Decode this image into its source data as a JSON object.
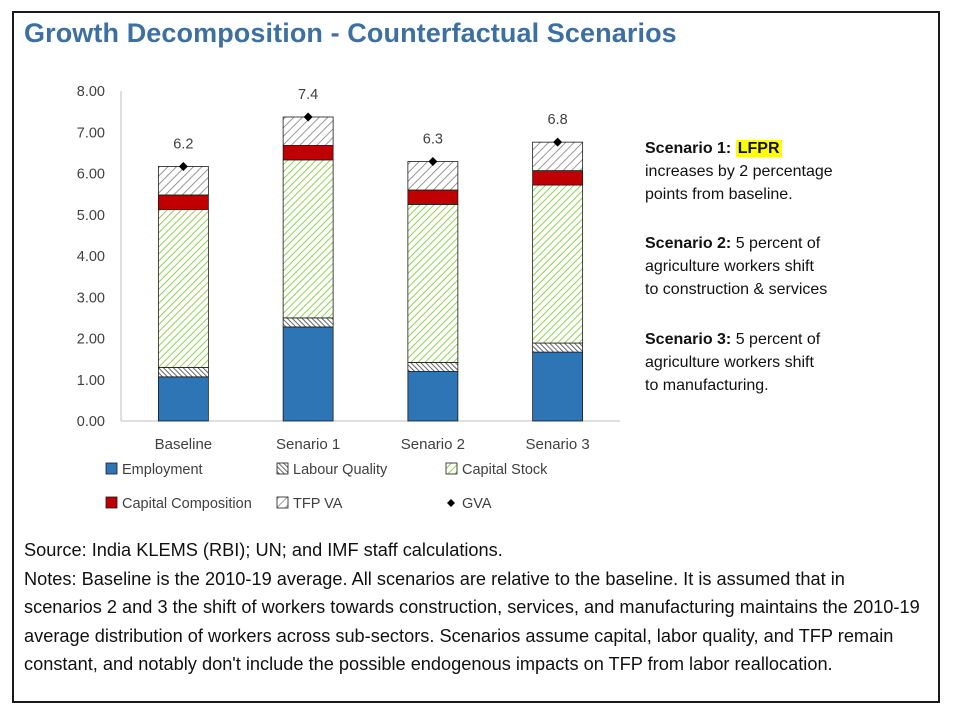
{
  "title": "Growth Decomposition - Counterfactual Scenarios",
  "chart_data": {
    "type": "bar",
    "stacked": true,
    "categories": [
      "Baseline",
      "Senario 1",
      "Senario 2",
      "Senario 3"
    ],
    "series": [
      {
        "name": "Employment",
        "values": [
          1.07,
          2.28,
          1.2,
          1.67
        ],
        "color": "#2e75b6",
        "pattern": "solid"
      },
      {
        "name": "Labour Quality",
        "values": [
          0.23,
          0.22,
          0.22,
          0.22
        ],
        "color": "#404040",
        "pattern": "dense-diagonal"
      },
      {
        "name": "Capital Stock",
        "values": [
          3.83,
          3.83,
          3.83,
          3.83
        ],
        "color": "#92d050",
        "pattern": "diagonal"
      },
      {
        "name": "Capital Composition",
        "values": [
          0.35,
          0.35,
          0.35,
          0.35
        ],
        "color": "#c00000",
        "pattern": "solid"
      },
      {
        "name": "TFP VA",
        "values": [
          0.69,
          0.69,
          0.69,
          0.69
        ],
        "color": "#7f7f7f",
        "pattern": "diagonal"
      }
    ],
    "gva": {
      "name": "GVA",
      "values": [
        6.17,
        7.37,
        6.29,
        6.76
      ],
      "labels": [
        "6.2",
        "7.4",
        "6.3",
        "6.8"
      ]
    },
    "yticks": [
      "0.00",
      "1.00",
      "2.00",
      "3.00",
      "4.00",
      "5.00",
      "6.00",
      "7.00",
      "8.00"
    ],
    "ylim": [
      0,
      8
    ],
    "grid": false,
    "legend": "bottom"
  },
  "scenarios": [
    {
      "label": "Scenario 1:",
      "highlight": "LFPR",
      "lines": [
        "increases by 2 percentage",
        "points from baseline."
      ]
    },
    {
      "label": "Scenario 2:",
      "first": " 5 percent of",
      "lines": [
        "agriculture workers shift",
        "to construction & services"
      ]
    },
    {
      "label": "Scenario 3:",
      "first": " 5 percent of",
      "lines": [
        "agriculture workers shift",
        "to manufacturing."
      ]
    }
  ],
  "source": "Source: India KLEMS (RBI); UN; and IMF staff calculations.",
  "notes": "Notes: Baseline is the 2010-19 average. All scenarios are relative to the baseline. It is assumed that in scenarios 2 and 3 the shift of workers towards construction, services, and manufacturing maintains the 2010-19 average distribution of workers across sub-sectors. Scenarios assume capital, labor quality, and TFP remain constant, and notably don't include the possible endogenous impacts on TFP from labor reallocation."
}
